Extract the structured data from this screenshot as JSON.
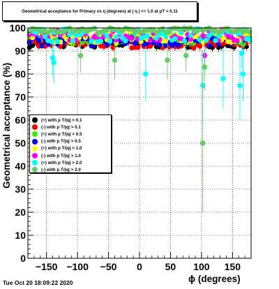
{
  "chart_data": {
    "type": "scatter",
    "title": "Geometrical acceptance for Primary vs η (degrees) at | η | <= 1.0 at pT > 0.11",
    "xlabel": "ϕ (degrees)",
    "ylabel": "Geometrical acceptance (%)",
    "xlim": [
      -180,
      180
    ],
    "ylim": [
      0,
      100
    ],
    "x_ticks": [
      -150,
      -100,
      -50,
      0,
      50,
      100,
      150
    ],
    "y_ticks": [
      0,
      10,
      20,
      30,
      40,
      50,
      60,
      70,
      80,
      90,
      100
    ],
    "grid": true,
    "legend_position": "middle-left",
    "series": [
      {
        "name": "(+) with p T/|q| > 0.1",
        "color": "#000000",
        "base": 93,
        "spread": 1.5,
        "dips": []
      },
      {
        "name": "(-) with p T/|q| > 0.1",
        "color": "#ff0000",
        "base": 93,
        "spread": 1.8,
        "dips": []
      },
      {
        "name": "(+) with p T/|q| > 0.5",
        "color": "#33ee00",
        "base": 95,
        "spread": 2.0,
        "dips": []
      },
      {
        "name": "(-) with p T/|q| > 0.5",
        "color": "#0000ff",
        "base": 94,
        "spread": 2.0,
        "dips": []
      },
      {
        "name": "(+) with p T/|q| > 1.0",
        "color": "#ffff00",
        "base": 96,
        "spread": 2.5,
        "dips": []
      },
      {
        "name": "(-) with p T/|q| > 1.0",
        "color": "#ff00ff",
        "base": 97,
        "spread": 2.5,
        "dips": [
          [
            105,
            88
          ]
        ]
      },
      {
        "name": "(+) with p T/|q| > 2.0",
        "color": "#00ffff",
        "base": 97,
        "spread": 3.0,
        "dips": [
          [
            -140,
            87
          ],
          [
            -138,
            85
          ],
          [
            10,
            80
          ],
          [
            102,
            75
          ],
          [
            135,
            78
          ],
          [
            162,
            75
          ],
          [
            165,
            89
          ],
          [
            167,
            80
          ]
        ]
      },
      {
        "name": "(-) with p T/|q| > 2.0",
        "color": "#66cc66",
        "base": 99,
        "spread": 1.0,
        "dips": [
          [
            -95,
            88
          ],
          [
            -40,
            86
          ],
          [
            45,
            86
          ],
          [
            75,
            88
          ],
          [
            102,
            50
          ],
          [
            105,
            83
          ]
        ]
      }
    ]
  },
  "legend_entries": [
    {
      "label": "(+) with p T/|q| > 0.1",
      "color": "#000000"
    },
    {
      "label": "(-) with p T/|q| > 0.1",
      "color": "#ff0000"
    },
    {
      "label": "(+) with p T/|q| > 0.5",
      "color": "#33ee00"
    },
    {
      "label": "(-) with p T/|q| > 0.5",
      "color": "#0000ff"
    },
    {
      "label": "(+) with p T/|q| > 1.0",
      "color": "#ffff00"
    },
    {
      "label": "(-) with p T/|q| > 1.0",
      "color": "#ff00ff"
    },
    {
      "label": "(+) with p T/|q| > 2.0",
      "color": "#00ffff"
    },
    {
      "label": "(-) with p T/|q| > 2.0",
      "color": "#66cc66"
    }
  ],
  "timestamp": "Tue Oct 20 18:09:22 2020"
}
